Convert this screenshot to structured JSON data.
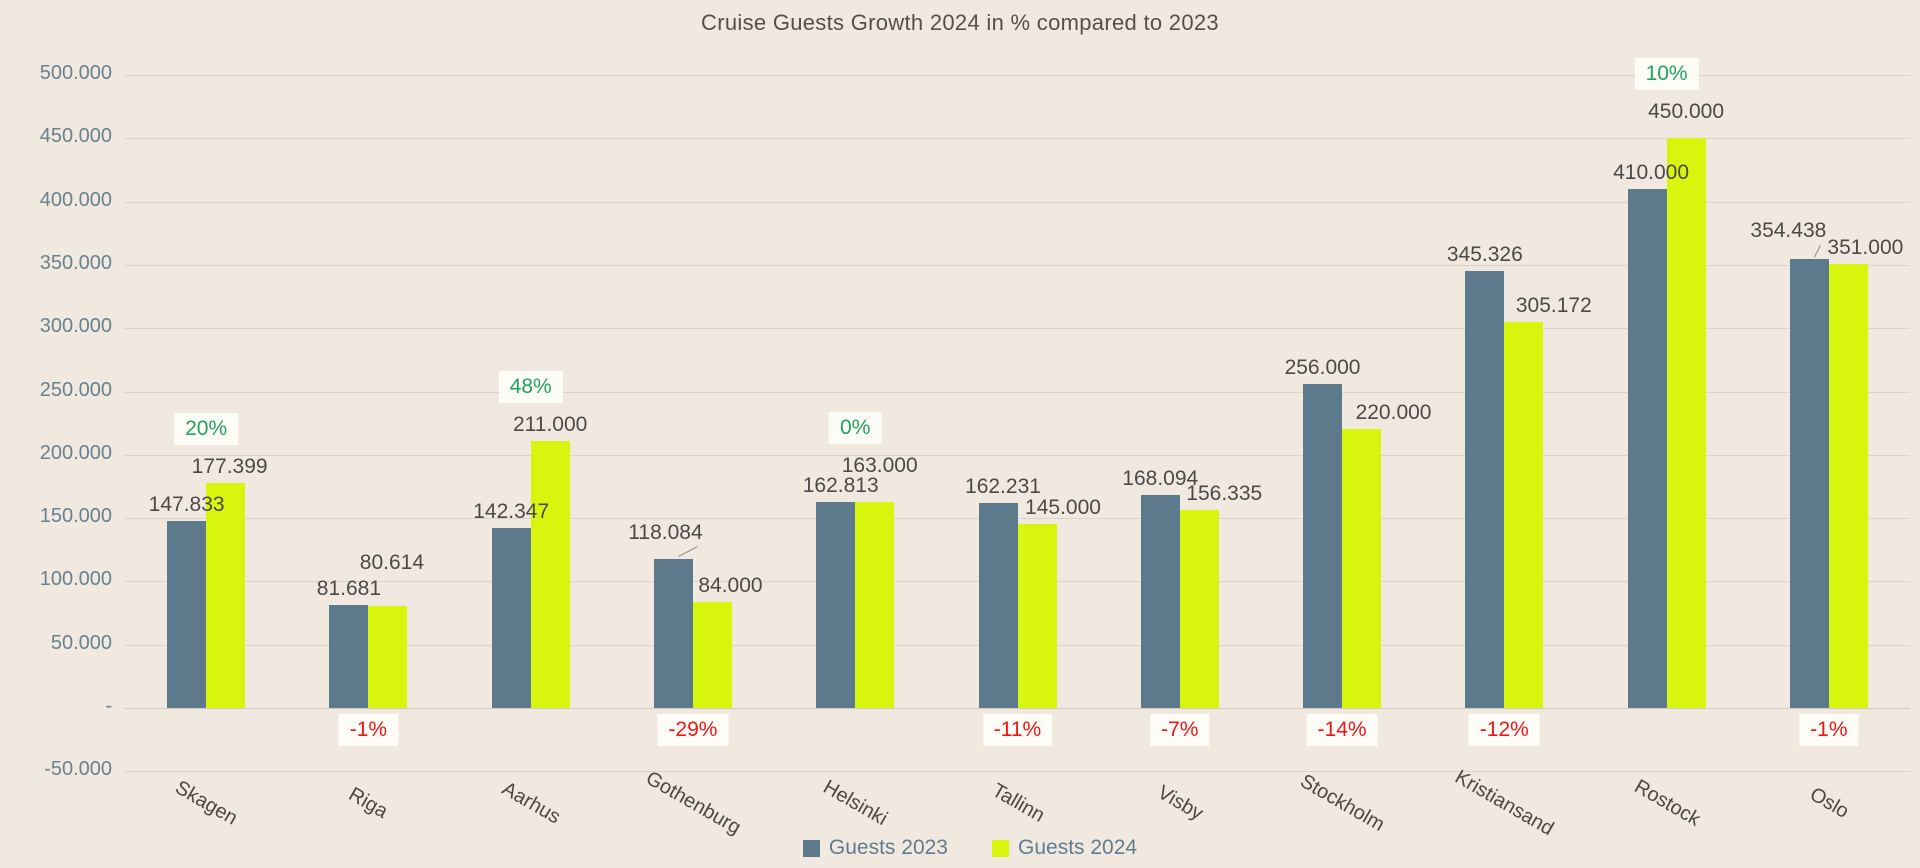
{
  "chart_data": {
    "type": "bar",
    "title": "Cruise Guests Growth 2024 in % compared to 2023",
    "categories": [
      "Skagen",
      "Riga",
      "Aarhus",
      "Gothenburg",
      "Helsinki",
      "Tallinn",
      "Visby",
      "Stockholm",
      "Kristiansand",
      "Rostock",
      "Oslo"
    ],
    "series": [
      {
        "name": "Guests 2023",
        "color": "#5c7a8b",
        "values": [
          147833,
          81681,
          142347,
          118084,
          162813,
          162231,
          168094,
          256000,
          345326,
          410000,
          354438
        ],
        "labels": [
          "147.833",
          "81.681",
          "142.347",
          "118.084",
          "162.813",
          "162.231",
          "168.094",
          "256.000",
          "345.326",
          "410.000",
          "354.438"
        ]
      },
      {
        "name": "Guests 2024",
        "color": "#d7f50d",
        "values": [
          177399,
          80614,
          211000,
          84000,
          163000,
          145000,
          156335,
          220000,
          305172,
          450000,
          351000
        ],
        "labels": [
          "177.399",
          "80.614",
          "211.000",
          "84.000",
          "163.000",
          "145.000",
          "156.335",
          "220.000",
          "305.172",
          "450.000",
          "351.000"
        ]
      }
    ],
    "growth_pct": [
      "20%",
      "-1%",
      "48%",
      "-29%",
      "0%",
      "-11%",
      "-7%",
      "-14%",
      "-12%",
      "10%",
      "-1%"
    ],
    "growth_positive": [
      true,
      false,
      true,
      false,
      true,
      false,
      false,
      false,
      false,
      true,
      false
    ],
    "positive_color": "#1fa35d",
    "negative_color": "#ee1616",
    "ylim": [
      -50000,
      500000
    ],
    "ytick_step": 50000,
    "ytick_labels": [
      "500.000",
      "450.000",
      "400.000",
      "350.000",
      "300.000",
      "250.000",
      "200.000",
      "150.000",
      "100.000",
      "50.000",
      "-",
      "-50.000"
    ],
    "grid": true,
    "legend_position": "bottom",
    "label_layout": {
      "dx2023": [
        0,
        0,
        0,
        -8,
        5,
        5,
        0,
        0,
        0,
        4,
        -21
      ],
      "dy2023": [
        0,
        0,
        0,
        -10,
        0,
        0,
        0,
        0,
        0,
        0,
        -12
      ],
      "dx2024": [
        4,
        4,
        0,
        18,
        5,
        26,
        25,
        32,
        30,
        0,
        17
      ],
      "dy2024": [
        0,
        -27,
        0,
        0,
        -20,
        0,
        0,
        0,
        0,
        -10,
        0
      ],
      "leader2023": [
        false,
        false,
        false,
        true,
        false,
        false,
        false,
        false,
        false,
        false,
        true
      ]
    }
  }
}
